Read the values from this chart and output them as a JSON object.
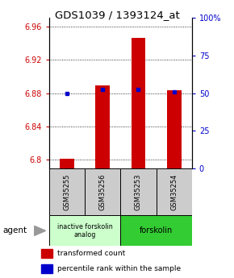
{
  "title": "GDS1039 / 1393124_at",
  "samples": [
    "GSM35255",
    "GSM35256",
    "GSM35253",
    "GSM35254"
  ],
  "red_values": [
    6.801,
    6.889,
    6.946,
    6.883
  ],
  "blue_values": [
    6.88,
    6.884,
    6.884,
    6.882
  ],
  "ylim_left": [
    6.79,
    6.97
  ],
  "ylim_right": [
    0,
    100
  ],
  "yticks_left": [
    6.8,
    6.84,
    6.88,
    6.92,
    6.96
  ],
  "yticks_right": [
    0,
    25,
    50,
    75,
    100
  ],
  "ytick_labels_right": [
    "0",
    "25",
    "50",
    "75",
    "100%"
  ],
  "grid_values": [
    6.8,
    6.84,
    6.88,
    6.92,
    6.96
  ],
  "bar_base": 6.79,
  "bar_width": 0.4,
  "group1_label": "inactive forskolin\nanalog",
  "group2_label": "forskolin",
  "group1_color": "#ccffcc",
  "group2_color": "#33cc33",
  "sample_box_color": "#cccccc",
  "red_color": "#cc0000",
  "blue_color": "#0000cc",
  "title_fontsize": 9.5,
  "tick_fontsize": 7,
  "agent_label": "agent",
  "legend_red": "transformed count",
  "legend_blue": "percentile rank within the sample"
}
